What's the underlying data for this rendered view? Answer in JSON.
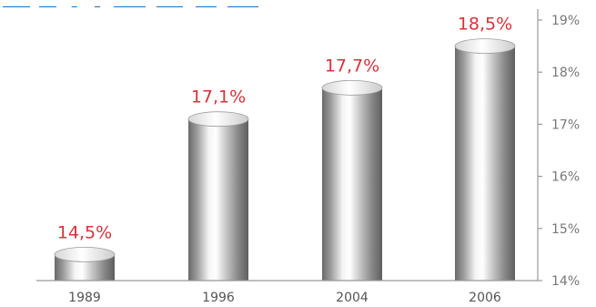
{
  "chart_data": {
    "type": "bar",
    "categories": [
      "1989",
      "1996",
      "2004",
      "2006"
    ],
    "values": [
      14.5,
      17.1,
      17.7,
      18.5
    ],
    "value_labels": [
      "14,5%",
      "17,1%",
      "17,7%",
      "18,5%"
    ],
    "y_ticks": [
      14,
      15,
      16,
      17,
      18,
      19
    ],
    "y_tick_labels": [
      "14%",
      "15%",
      "16%",
      "17%",
      "18%",
      "19%"
    ],
    "ylim": [
      14,
      19
    ],
    "title": "",
    "xlabel": "",
    "ylabel": "",
    "y_axis_side": "right",
    "grid": false,
    "colors": {
      "value_label": "#d8313a",
      "bar": "#a8a8a8",
      "title_fragment": "#1a6fc0",
      "axis": "#999999"
    }
  }
}
